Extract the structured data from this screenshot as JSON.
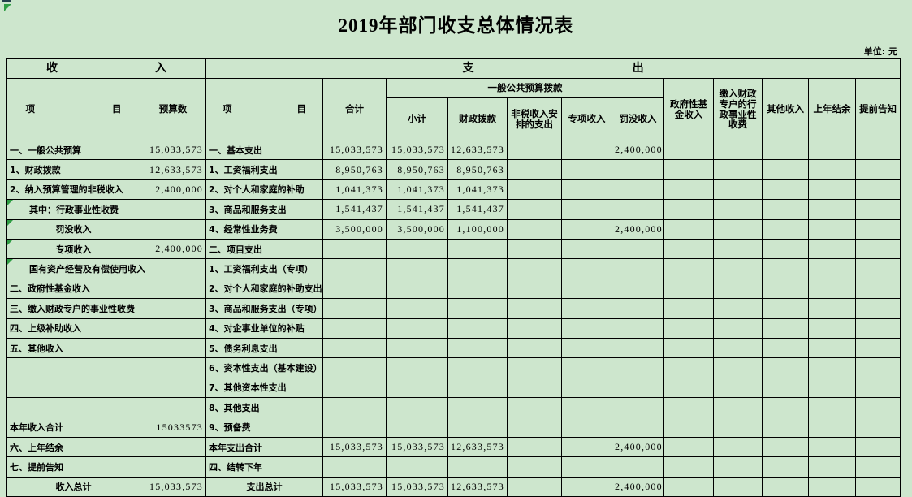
{
  "page": {
    "title": "2019年部门收支总体情况表",
    "unit_label": "单位: 元",
    "background_color": "#cde6cd",
    "marker_color": "#2f9e44"
  },
  "headers": {
    "income_c1": "收",
    "income_c2": "入",
    "expense_c1": "支",
    "expense_c2": "出",
    "item_c1": "项",
    "item_c2": "目",
    "budget": "预算数",
    "total": "合计",
    "general_group": "一般公共预算拨款",
    "subtotal": "小计",
    "fiscal": "财政拨款",
    "nontax": "非税收入安排的支出",
    "special": "专项收入",
    "penalty": "罚没收入",
    "gov_fund": "政府性基金收入",
    "fiscal_fees": "缴入财政专户的行政事业性收费",
    "other": "其他收入",
    "prev_balance": "上年结余",
    "notice": "提前告知"
  },
  "table": {
    "rows": [
      {
        "income": {
          "label": "一、一般公共预算",
          "value": "15,033,573"
        },
        "expense": {
          "label": "一、基本支出",
          "total": "15,033,573",
          "subtotal": "15,033,573",
          "fiscal": "12,633,573",
          "penalty": "2,400,000"
        }
      },
      {
        "income": {
          "label": "1、财政拨款",
          "value": "12,633,573"
        },
        "expense": {
          "label": "1、工资福利支出",
          "total": "8,950,763",
          "subtotal": "8,950,763",
          "fiscal": "8,950,763"
        }
      },
      {
        "income": {
          "label": "2、纳入预算管理的非税收入",
          "value": "2,400,000"
        },
        "expense": {
          "label": "2、对个人和家庭的补助",
          "total": "1,041,373",
          "subtotal": "1,041,373",
          "fiscal": "1,041,373"
        }
      },
      {
        "income": {
          "label": "其中：行政事业性收费",
          "indent": 1,
          "triangle": true
        },
        "expense": {
          "label": "3、商品和服务支出",
          "total": "1,541,437",
          "subtotal": "1,541,437",
          "fiscal": "1,541,437"
        }
      },
      {
        "income": {
          "label": "罚没收入",
          "align": "center",
          "triangle": true
        },
        "expense": {
          "label": "4、经常性业务费",
          "total": "3,500,000",
          "subtotal": "3,500,000",
          "fiscal": "1,100,000",
          "penalty": "2,400,000"
        }
      },
      {
        "income": {
          "label": "专项收入",
          "value": "2,400,000",
          "align": "center",
          "triangle": true
        },
        "expense": {
          "label": "二、项目支出"
        }
      },
      {
        "income": {
          "label": "国有资产经营及有偿使用收入",
          "indent": 1,
          "triangle": true,
          "merged": true
        },
        "expense": {
          "label": "1、工资福利支出（专项）"
        }
      },
      {
        "income": {
          "label": "二、政府性基金收入"
        },
        "expense": {
          "label": "2、对个人和家庭的补助支出"
        }
      },
      {
        "income": {
          "label": "三、缴入财政专户的事业性收费"
        },
        "expense": {
          "label": "3、商品和服务支出（专项）"
        }
      },
      {
        "income": {
          "label": "四、上级补助收入"
        },
        "expense": {
          "label": "4、对企事业单位的补贴"
        }
      },
      {
        "income": {
          "label": "五、其他收入"
        },
        "expense": {
          "label": "5、债务利息支出"
        }
      },
      {
        "income": {
          "label": ""
        },
        "expense": {
          "label": "6、资本性支出（基本建设）"
        }
      },
      {
        "income": {
          "label": ""
        },
        "expense": {
          "label": "7、其他资本性支出"
        }
      },
      {
        "income": {
          "label": ""
        },
        "expense": {
          "label": "8、其他支出"
        }
      },
      {
        "income": {
          "label": "本年收入合计",
          "value": "15033573"
        },
        "expense": {
          "label": "9、预备费"
        }
      },
      {
        "income": {
          "label": "六、上年结余"
        },
        "expense": {
          "label": "本年支出合计",
          "total": "15,033,573",
          "subtotal": "15,033,573",
          "fiscal": "12,633,573",
          "penalty": "2,400,000"
        }
      },
      {
        "income": {
          "label": "七、提前告知"
        },
        "expense": {
          "label": "四、结转下年"
        }
      },
      {
        "income": {
          "label": "收入总计",
          "value": "15,033,573",
          "align": "center"
        },
        "expense": {
          "label": "支出总计",
          "align": "center",
          "total": "15,033,573",
          "subtotal": "15,033,573",
          "fiscal": "12,633,573",
          "penalty": "2,400,000"
        }
      }
    ]
  }
}
